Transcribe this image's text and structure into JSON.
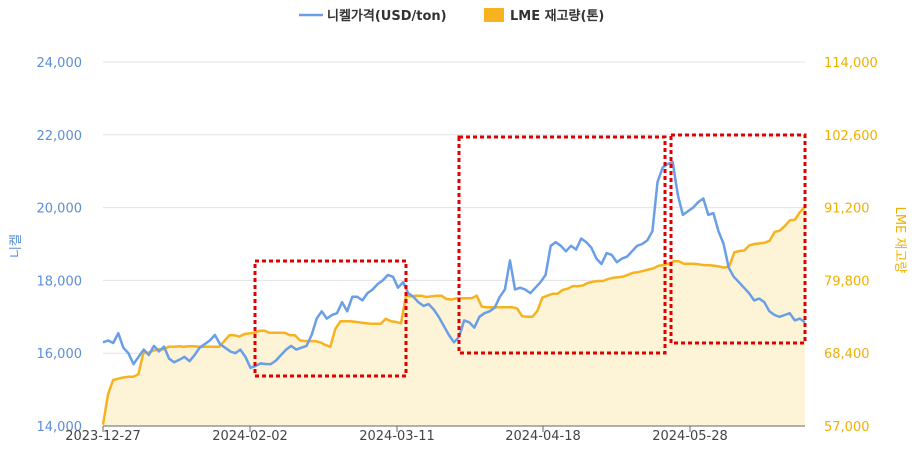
{
  "chart_data": {
    "type": "line",
    "legend": {
      "placement": "top-center",
      "items": [
        {
          "label": "니켈가격(USD/ton)",
          "color": "#6a9ee6"
        },
        {
          "label": "LME 재고량(톤)",
          "color": "#f6b31f"
        }
      ]
    },
    "y_left": {
      "title": "니켈",
      "ticks": [
        "24,000",
        "22,000",
        "20,000",
        "18,000",
        "16,000",
        "14,000"
      ],
      "range": [
        14000,
        24000
      ]
    },
    "y_right": {
      "title": "LME 재고량",
      "ticks": [
        "114,000",
        "102,600",
        "91,200",
        "79,800",
        "68,400",
        "57,000"
      ],
      "range": [
        57000,
        114000
      ]
    },
    "x_ticks": [
      "2023-12-27",
      "2024-02-02",
      "2024-03-11",
      "2024-04-18",
      "2024-05-28"
    ],
    "grid": true,
    "series": [
      {
        "name": "니켈가격(USD/ton)",
        "axis": "left",
        "color": "#6a9ee6",
        "values": [
          16300,
          16350,
          16280,
          16550,
          16150,
          16000,
          15700,
          15900,
          16100,
          15950,
          16200,
          16050,
          16180,
          15850,
          15750,
          15820,
          15900,
          15780,
          15950,
          16150,
          16250,
          16350,
          16500,
          16250,
          16150,
          16050,
          16000,
          16100,
          15900,
          15600,
          15650,
          15720,
          15700,
          15700,
          15800,
          15950,
          16100,
          16200,
          16100,
          16150,
          16200,
          16500,
          16950,
          17150,
          16950,
          17050,
          17100,
          17400,
          17150,
          17550,
          17550,
          17450,
          17650,
          17750,
          17900,
          18000,
          18150,
          18100,
          17800,
          17950,
          17650,
          17550,
          17400,
          17300,
          17350,
          17200,
          17000,
          16750,
          16500,
          16300,
          16450,
          16900,
          16850,
          16700,
          17000,
          17100,
          17150,
          17250,
          17550,
          17750,
          18550,
          17750,
          17800,
          17750,
          17650,
          17800,
          17950,
          18150,
          18950,
          19050,
          18950,
          18800,
          18950,
          18850,
          19150,
          19050,
          18900,
          18600,
          18450,
          18750,
          18700,
          18500,
          18600,
          18650,
          18800,
          18950,
          19000,
          19100,
          19350,
          20700,
          21100,
          21200,
          21250,
          20350,
          19800,
          19900,
          20000,
          20150,
          20250,
          19800,
          19850,
          19350,
          19000,
          18350,
          18100,
          17950,
          17800,
          17650,
          17450,
          17500,
          17400,
          17150,
          17050,
          17000,
          17050,
          17100,
          16900,
          16950,
          16850
        ],
        "endpoint_note": "last close ~16,850"
      },
      {
        "name": "LME 재고량(톤)",
        "axis": "right",
        "color": "#f6b31f",
        "values": [
          57200,
          62000,
          64200,
          64400,
          64600,
          64700,
          64700,
          65100,
          68500,
          68500,
          68800,
          69000,
          69000,
          69400,
          69400,
          69500,
          69400,
          69500,
          69500,
          69400,
          69400,
          69400,
          69400,
          69400,
          70300,
          71200,
          71200,
          71000,
          71400,
          71500,
          71600,
          71900,
          71900,
          71600,
          71600,
          71600,
          71600,
          71200,
          71200,
          70400,
          70300,
          70300,
          70300,
          70100,
          69700,
          69400,
          72200,
          73400,
          73400,
          73400,
          73300,
          73200,
          73100,
          73000,
          73000,
          73000,
          73800,
          73400,
          73300,
          73100,
          77400,
          77300,
          77400,
          77400,
          77200,
          77300,
          77400,
          77400,
          76900,
          76800,
          77000,
          77000,
          77000,
          77000,
          77400,
          75700,
          75600,
          75600,
          75600,
          75600,
          75600,
          75600,
          75400,
          74200,
          74100,
          74100,
          75000,
          77100,
          77400,
          77700,
          77700,
          78300,
          78500,
          78900,
          78900,
          79000,
          79400,
          79600,
          79700,
          79700,
          80000,
          80200,
          80300,
          80400,
          80700,
          81000,
          81100,
          81300,
          81500,
          81700,
          82100,
          82200,
          82400,
          82800,
          82800,
          82400,
          82400,
          82400,
          82300,
          82200,
          82200,
          82100,
          82000,
          81800,
          82000,
          84200,
          84400,
          84500,
          85300,
          85500,
          85600,
          85700,
          86000,
          87400,
          87600,
          88300,
          89200,
          89300,
          90500,
          91300
        ]
      }
    ],
    "annotations": [
      {
        "type": "dashed-box",
        "color": "#e10000",
        "from": "2024-02-02",
        "to": "2024-03-11",
        "y_low": 16000,
        "y_high": 18500
      },
      {
        "type": "dashed-box",
        "color": "#e10000",
        "from": "2024-03-22",
        "to": "2024-05-24",
        "y_low": 16000,
        "y_high": 22000
      },
      {
        "type": "dashed-box",
        "color": "#e10000",
        "from": "2024-05-28",
        "to": "2024-06-30",
        "y_low": 16800,
        "y_high": 22000
      }
    ]
  }
}
